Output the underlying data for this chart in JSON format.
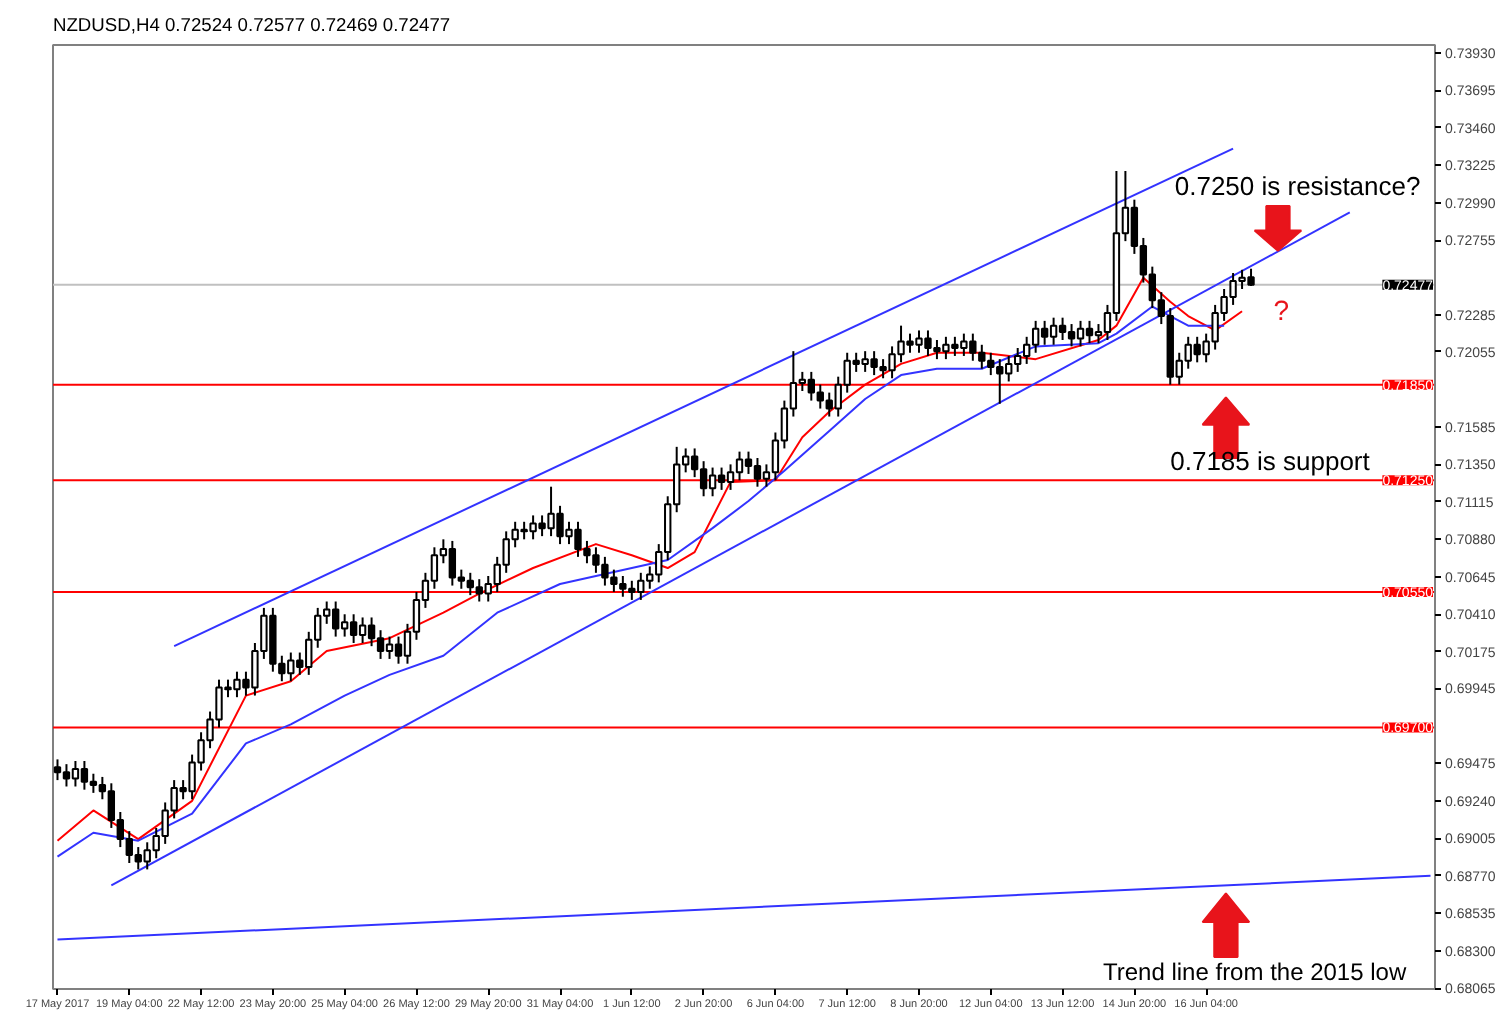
{
  "chart_data": {
    "type": "candlestick",
    "title": "NZDUSD,H4  0.72524 0.72577 0.72469 0.72477",
    "categories": [
      "17 May 2017",
      null,
      null,
      null,
      null,
      null,
      null,
      null,
      "19 May 04:00",
      null,
      null,
      null,
      null,
      null,
      null,
      null,
      "22 May 12:00",
      null,
      null,
      null,
      null,
      null,
      null,
      null,
      "23 May 20:00",
      null,
      null,
      null,
      null,
      null,
      null,
      null,
      "25 May 04:00",
      null,
      null,
      null,
      null,
      null,
      null,
      null,
      "26 May 12:00",
      null,
      null,
      null,
      null,
      null,
      null,
      null,
      "29 May 20:00",
      null,
      null,
      null,
      null,
      null,
      null,
      null,
      "31 May 04:00",
      null,
      null,
      null,
      null,
      null,
      null,
      null,
      "1 Jun 12:00",
      null,
      null,
      null,
      null,
      null,
      null,
      null,
      "2 Jun 20:00",
      null,
      null,
      null,
      null,
      null,
      null,
      null,
      "6 Jun 04:00",
      null,
      null,
      null,
      null,
      null,
      null,
      null,
      "7 Jun 12:00",
      null,
      null,
      null,
      null,
      null,
      null,
      null,
      "8 Jun 20:00",
      null,
      null,
      null,
      null,
      null,
      null,
      null,
      "12 Jun 04:00",
      null,
      null,
      null,
      null,
      null,
      null,
      null,
      "13 Jun 12:00",
      null,
      null,
      null,
      null,
      null,
      null,
      null,
      "14 Jun 20:00",
      null,
      null,
      null,
      null,
      null,
      null,
      null,
      "16 Jun 04:00",
      null,
      null,
      null,
      null,
      null,
      null,
      null,
      null,
      null,
      null,
      null,
      null,
      null,
      null,
      null,
      null,
      null,
      null,
      null,
      null,
      null,
      null,
      null,
      null,
      null
    ],
    "ohlc": [
      [
        0.6945,
        0.695,
        0.6937,
        0.6942
      ],
      [
        0.6942,
        0.6947,
        0.6933,
        0.6938
      ],
      [
        0.6938,
        0.6949,
        0.6933,
        0.6944
      ],
      [
        0.6944,
        0.6949,
        0.6931,
        0.6936
      ],
      [
        0.6936,
        0.6941,
        0.6929,
        0.6934
      ],
      [
        0.6934,
        0.6939,
        0.6925,
        0.693
      ],
      [
        0.693,
        0.6935,
        0.6907,
        0.6912
      ],
      [
        0.6912,
        0.6917,
        0.6895,
        0.69
      ],
      [
        0.69,
        0.6905,
        0.6885,
        0.689
      ],
      [
        0.689,
        0.6895,
        0.6881,
        0.6886
      ],
      [
        0.6886,
        0.6898,
        0.6881,
        0.6893
      ],
      [
        0.6893,
        0.6907,
        0.6888,
        0.6902
      ],
      [
        0.6902,
        0.6923,
        0.6897,
        0.6918
      ],
      [
        0.6918,
        0.6937,
        0.6913,
        0.6932
      ],
      [
        0.6932,
        0.6937,
        0.6925,
        0.693
      ],
      [
        0.693,
        0.6953,
        0.6925,
        0.6948
      ],
      [
        0.6948,
        0.6967,
        0.6943,
        0.6962
      ],
      [
        0.6962,
        0.698,
        0.6957,
        0.6975
      ],
      [
        0.6975,
        0.7,
        0.697,
        0.6995
      ],
      [
        0.6995,
        0.7,
        0.6989,
        0.6994
      ],
      [
        0.6994,
        0.7005,
        0.6989,
        0.7
      ],
      [
        0.7,
        0.7005,
        0.699,
        0.6995
      ],
      [
        0.6995,
        0.7023,
        0.699,
        0.7018
      ],
      [
        0.7018,
        0.7045,
        0.7013,
        0.704
      ],
      [
        0.704,
        0.7045,
        0.7005,
        0.701
      ],
      [
        0.701,
        0.7015,
        0.6999,
        0.7004
      ],
      [
        0.7004,
        0.7017,
        0.6999,
        0.7012
      ],
      [
        0.7012,
        0.7017,
        0.7003,
        0.7008
      ],
      [
        0.7008,
        0.703,
        0.7003,
        0.7025
      ],
      [
        0.7025,
        0.7045,
        0.702,
        0.704
      ],
      [
        0.704,
        0.7049,
        0.7035,
        0.7044
      ],
      [
        0.7044,
        0.7049,
        0.7027,
        0.7032
      ],
      [
        0.7032,
        0.7041,
        0.7027,
        0.7036
      ],
      [
        0.7036,
        0.7041,
        0.7023,
        0.7028
      ],
      [
        0.7028,
        0.7039,
        0.7023,
        0.7034
      ],
      [
        0.7034,
        0.7039,
        0.7021,
        0.7026
      ],
      [
        0.7026,
        0.7031,
        0.7013,
        0.7018
      ],
      [
        0.7018,
        0.7027,
        0.7013,
        0.7022
      ],
      [
        0.7022,
        0.7027,
        0.701,
        0.7015
      ],
      [
        0.7015,
        0.7035,
        0.701,
        0.703
      ],
      [
        0.703,
        0.7055,
        0.7025,
        0.705
      ],
      [
        0.705,
        0.7067,
        0.7045,
        0.7062
      ],
      [
        0.7062,
        0.7083,
        0.7057,
        0.7078
      ],
      [
        0.7078,
        0.7088,
        0.7073,
        0.7082
      ],
      [
        0.7082,
        0.7087,
        0.7059,
        0.7064
      ],
      [
        0.7064,
        0.7069,
        0.7057,
        0.7062
      ],
      [
        0.7062,
        0.7067,
        0.7053,
        0.7058
      ],
      [
        0.7058,
        0.7063,
        0.7049,
        0.7054
      ],
      [
        0.7054,
        0.7065,
        0.7049,
        0.706
      ],
      [
        0.706,
        0.7077,
        0.7055,
        0.7072
      ],
      [
        0.7072,
        0.7093,
        0.7067,
        0.7088
      ],
      [
        0.7088,
        0.7099,
        0.7083,
        0.7094
      ],
      [
        0.7094,
        0.7099,
        0.7088,
        0.7093
      ],
      [
        0.7093,
        0.7103,
        0.7088,
        0.7098
      ],
      [
        0.7098,
        0.7103,
        0.709,
        0.7095
      ],
      [
        0.7095,
        0.7121,
        0.709,
        0.7104
      ],
      [
        0.7104,
        0.7109,
        0.7085,
        0.709
      ],
      [
        0.709,
        0.7099,
        0.7085,
        0.7094
      ],
      [
        0.7094,
        0.7099,
        0.7077,
        0.7082
      ],
      [
        0.7082,
        0.7087,
        0.7073,
        0.7078
      ],
      [
        0.7078,
        0.7083,
        0.7067,
        0.7072
      ],
      [
        0.7072,
        0.7077,
        0.7059,
        0.7064
      ],
      [
        0.7064,
        0.7069,
        0.7055,
        0.706
      ],
      [
        0.706,
        0.7065,
        0.7052,
        0.7057
      ],
      [
        0.7057,
        0.7062,
        0.705,
        0.7055
      ],
      [
        0.7055,
        0.7067,
        0.705,
        0.7062
      ],
      [
        0.7062,
        0.7071,
        0.7057,
        0.7066
      ],
      [
        0.7066,
        0.7085,
        0.7061,
        0.708
      ],
      [
        0.708,
        0.7115,
        0.7075,
        0.711
      ],
      [
        0.711,
        0.7146,
        0.7105,
        0.7135
      ],
      [
        0.7135,
        0.7145,
        0.713,
        0.714
      ],
      [
        0.714,
        0.7145,
        0.7127,
        0.7132
      ],
      [
        0.7132,
        0.7137,
        0.7115,
        0.712
      ],
      [
        0.712,
        0.7133,
        0.7115,
        0.7128
      ],
      [
        0.7128,
        0.7133,
        0.7119,
        0.7124
      ],
      [
        0.7124,
        0.7135,
        0.7119,
        0.713
      ],
      [
        0.713,
        0.7143,
        0.7125,
        0.7138
      ],
      [
        0.7138,
        0.7143,
        0.7129,
        0.7134
      ],
      [
        0.7134,
        0.7139,
        0.7121,
        0.7126
      ],
      [
        0.7126,
        0.7135,
        0.7121,
        0.713
      ],
      [
        0.713,
        0.7155,
        0.7125,
        0.715
      ],
      [
        0.715,
        0.7175,
        0.7145,
        0.717
      ],
      [
        0.717,
        0.7206,
        0.7165,
        0.7186
      ],
      [
        0.7186,
        0.7193,
        0.7181,
        0.7188
      ],
      [
        0.7188,
        0.7193,
        0.7175,
        0.718
      ],
      [
        0.718,
        0.7185,
        0.717,
        0.7175
      ],
      [
        0.7175,
        0.718,
        0.7165,
        0.717
      ],
      [
        0.717,
        0.719,
        0.7165,
        0.7185
      ],
      [
        0.7185,
        0.7205,
        0.718,
        0.72
      ],
      [
        0.72,
        0.7205,
        0.7193,
        0.7198
      ],
      [
        0.7198,
        0.7206,
        0.7193,
        0.7201
      ],
      [
        0.7201,
        0.7206,
        0.7191,
        0.7196
      ],
      [
        0.7196,
        0.7201,
        0.7189,
        0.7194
      ],
      [
        0.7194,
        0.7209,
        0.7189,
        0.7204
      ],
      [
        0.7204,
        0.7222,
        0.7199,
        0.7212
      ],
      [
        0.7212,
        0.7217,
        0.7205,
        0.721
      ],
      [
        0.721,
        0.7219,
        0.7205,
        0.7214
      ],
      [
        0.7214,
        0.7219,
        0.7203,
        0.7208
      ],
      [
        0.7208,
        0.7213,
        0.7201,
        0.7206
      ],
      [
        0.7206,
        0.7215,
        0.7201,
        0.721
      ],
      [
        0.721,
        0.7215,
        0.7203,
        0.7208
      ],
      [
        0.7208,
        0.7217,
        0.7203,
        0.7212
      ],
      [
        0.7212,
        0.7217,
        0.72,
        0.7205
      ],
      [
        0.7205,
        0.721,
        0.7195,
        0.72
      ],
      [
        0.72,
        0.7205,
        0.7191,
        0.7196
      ],
      [
        0.7196,
        0.7201,
        0.7173,
        0.7192
      ],
      [
        0.7192,
        0.7203,
        0.7187,
        0.7198
      ],
      [
        0.7198,
        0.7208,
        0.7193,
        0.7203
      ],
      [
        0.7203,
        0.7215,
        0.7198,
        0.721
      ],
      [
        0.721,
        0.7225,
        0.7205,
        0.722
      ],
      [
        0.722,
        0.7225,
        0.721,
        0.7215
      ],
      [
        0.7215,
        0.7227,
        0.721,
        0.7222
      ],
      [
        0.7222,
        0.7227,
        0.7213,
        0.7218
      ],
      [
        0.7218,
        0.7223,
        0.7209,
        0.7214
      ],
      [
        0.7214,
        0.7225,
        0.7209,
        0.722
      ],
      [
        0.722,
        0.7225,
        0.7211,
        0.7216
      ],
      [
        0.7216,
        0.7223,
        0.7211,
        0.7218
      ],
      [
        0.7218,
        0.7235,
        0.7213,
        0.723
      ],
      [
        0.723,
        0.7319,
        0.7225,
        0.728
      ],
      [
        0.728,
        0.7319,
        0.7275,
        0.7296
      ],
      [
        0.7296,
        0.7301,
        0.7267,
        0.7272
      ],
      [
        0.7272,
        0.7277,
        0.7249,
        0.7254
      ],
      [
        0.7254,
        0.7259,
        0.7233,
        0.7238
      ],
      [
        0.7238,
        0.7243,
        0.7223,
        0.7228
      ],
      [
        0.7228,
        0.7233,
        0.7185,
        0.719
      ],
      [
        0.719,
        0.7205,
        0.7185,
        0.72
      ],
      [
        0.72,
        0.7215,
        0.7195,
        0.721
      ],
      [
        0.721,
        0.7215,
        0.7199,
        0.7204
      ],
      [
        0.7204,
        0.7217,
        0.7199,
        0.7212
      ],
      [
        0.7212,
        0.7235,
        0.7207,
        0.723
      ],
      [
        0.723,
        0.7245,
        0.7225,
        0.724
      ],
      [
        0.724,
        0.7255,
        0.7235,
        0.725
      ],
      [
        0.725,
        0.7257,
        0.7245,
        0.7252
      ],
      [
        0.72524,
        0.72577,
        0.72469,
        0.72477
      ],
      null,
      null,
      null,
      null,
      null,
      null,
      null,
      null,
      null,
      null,
      null,
      null,
      null,
      null,
      null,
      null,
      null,
      null,
      null,
      null
    ],
    "series": [
      {
        "type": "line",
        "color": "#ff0000",
        "values": [
          0.6899,
          null,
          null,
          null,
          0.6918,
          null,
          null,
          null,
          null,
          0.69,
          null,
          null,
          null,
          null,
          null,
          0.6924,
          null,
          null,
          null,
          null,
          null,
          0.699,
          null,
          null,
          null,
          null,
          0.6999,
          null,
          null,
          null,
          0.7018,
          null,
          null,
          null,
          null,
          null,
          null,
          0.7026,
          null,
          null,
          null,
          null,
          null,
          0.7042,
          null,
          null,
          null,
          0.7054,
          null,
          null,
          null,
          null,
          null,
          0.707,
          null,
          null,
          null,
          null,
          null,
          null,
          0.7085,
          null,
          null,
          null,
          0.7078,
          null,
          null,
          null,
          0.707,
          null,
          null,
          0.708,
          null,
          null,
          null,
          0.7124,
          null,
          null,
          null,
          null,
          0.7125,
          null,
          null,
          0.7152,
          null,
          null,
          0.7168,
          null,
          null,
          null,
          0.7185,
          null,
          null,
          null,
          0.7198,
          null,
          null,
          null,
          0.7205,
          null,
          null,
          null,
          null,
          0.7205,
          null,
          null,
          null,
          null,
          null,
          0.7201,
          null,
          null,
          null,
          null,
          null,
          null,
          0.7213,
          null,
          0.7222,
          null,
          null,
          0.7252,
          null,
          null,
          0.7237,
          null,
          0.7228,
          null,
          null,
          0.7219,
          null,
          null,
          0.7231,
          null,
          null,
          null,
          null,
          null,
          null,
          null,
          null,
          null,
          null,
          null,
          null,
          null,
          null,
          null,
          null,
          null,
          null,
          null,
          null,
          null
        ]
      },
      {
        "type": "line",
        "color": "#3333ff",
        "values": [
          0.6889,
          null,
          null,
          null,
          0.6904,
          null,
          null,
          null,
          null,
          0.6899,
          null,
          null,
          null,
          null,
          null,
          0.6916,
          null,
          null,
          null,
          null,
          null,
          0.696,
          null,
          null,
          null,
          null,
          0.6972,
          null,
          null,
          null,
          null,
          null,
          0.699,
          null,
          null,
          null,
          null,
          0.7003,
          null,
          null,
          null,
          null,
          null,
          0.7015,
          null,
          null,
          null,
          null,
          null,
          0.7042,
          null,
          null,
          null,
          null,
          null,
          null,
          0.706,
          null,
          null,
          null,
          null,
          null,
          null,
          null,
          null,
          null,
          null,
          null,
          0.7075,
          null,
          null,
          null,
          null,
          0.7095,
          null,
          null,
          null,
          0.7112,
          null,
          null,
          null,
          0.7131,
          null,
          null,
          null,
          null,
          0.7156,
          null,
          null,
          null,
          0.7176,
          null,
          null,
          null,
          0.7191,
          null,
          null,
          null,
          0.7195,
          null,
          null,
          null,
          null,
          0.7195,
          null,
          null,
          null,
          null,
          null,
          0.7209,
          null,
          null,
          null,
          null,
          null,
          null,
          0.7211,
          null,
          0.7217,
          null,
          null,
          null,
          0.7234,
          null,
          null,
          null,
          0.7222,
          null,
          null,
          null,
          0.7222,
          null,
          null,
          null,
          null,
          null,
          null,
          null,
          null,
          null,
          null,
          null,
          null,
          null,
          null,
          null,
          null,
          null,
          null,
          null,
          null,
          null,
          null,
          null
        ]
      },
      {
        "type": "line",
        "color": "#3333ff",
        "values": [
          null,
          null,
          null,
          null,
          null,
          null,
          null,
          null,
          null,
          null,
          null,
          null,
          null,
          0.7021,
          null,
          null,
          null,
          null,
          null,
          null,
          null,
          null,
          null,
          null,
          null,
          null,
          null,
          null,
          null,
          null,
          null,
          null,
          null,
          null,
          null,
          null,
          null,
          null,
          null,
          null,
          null,
          null,
          null,
          null,
          null,
          null,
          null,
          null,
          null,
          null,
          null,
          null,
          null,
          null,
          null,
          null,
          null,
          null,
          null,
          null,
          null,
          null,
          null,
          null,
          null,
          null,
          null,
          null,
          null,
          null,
          null,
          null,
          null,
          null,
          null,
          null,
          null,
          null,
          null,
          null,
          null,
          null,
          null,
          null,
          null,
          null,
          null,
          null,
          null,
          null,
          null,
          null,
          null,
          null,
          null,
          null,
          null,
          null,
          null,
          null,
          null,
          null,
          null,
          null,
          null,
          null,
          null,
          null,
          null,
          null,
          null,
          null,
          null,
          null,
          null,
          null,
          null,
          null,
          null,
          null,
          null,
          null,
          null,
          null,
          null,
          null,
          null,
          null,
          null,
          null,
          null,
          0.7333,
          null,
          null,
          null,
          null,
          null,
          null,
          null,
          null,
          null,
          null,
          null,
          null,
          null,
          null,
          null,
          null,
          null,
          null,
          null,
          null,
          null,
          null
        ]
      },
      {
        "type": "line",
        "color": "#3333ff",
        "values": [
          null,
          null,
          null,
          null,
          null,
          null,
          0.6871,
          null,
          null,
          null,
          null,
          null,
          null,
          null,
          null,
          null,
          null,
          null,
          null,
          null,
          null,
          null,
          null,
          null,
          null,
          null,
          null,
          null,
          null,
          null,
          null,
          null,
          null,
          null,
          null,
          null,
          null,
          null,
          null,
          null,
          null,
          null,
          null,
          null,
          null,
          null,
          null,
          null,
          null,
          null,
          null,
          null,
          null,
          null,
          null,
          null,
          null,
          null,
          null,
          null,
          null,
          null,
          null,
          null,
          null,
          null,
          null,
          null,
          null,
          null,
          null,
          null,
          null,
          null,
          null,
          null,
          null,
          null,
          null,
          null,
          null,
          null,
          null,
          null,
          null,
          null,
          null,
          null,
          null,
          null,
          null,
          null,
          null,
          null,
          null,
          null,
          null,
          null,
          null,
          null,
          null,
          null,
          null,
          null,
          null,
          null,
          null,
          null,
          null,
          null,
          null,
          null,
          null,
          null,
          null,
          null,
          null,
          null,
          null,
          null,
          null,
          null,
          null,
          null,
          null,
          null,
          null,
          null,
          null,
          null,
          null,
          null,
          null,
          null,
          null,
          null,
          null,
          null,
          null,
          null,
          null,
          null,
          null,
          null,
          0.7293,
          null,
          null,
          null,
          null,
          null,
          null,
          null,
          null,
          null
        ]
      },
      {
        "type": "line",
        "color": "#3333ff",
        "values": [
          0.6837,
          null,
          null,
          null,
          null,
          null,
          null,
          null,
          null,
          null,
          null,
          null,
          null,
          null,
          null,
          null,
          null,
          null,
          null,
          null,
          null,
          null,
          null,
          null,
          null,
          null,
          null,
          null,
          null,
          null,
          null,
          null,
          null,
          null,
          null,
          null,
          null,
          null,
          null,
          null,
          null,
          null,
          null,
          null,
          null,
          null,
          null,
          null,
          null,
          null,
          null,
          null,
          null,
          null,
          null,
          null,
          null,
          null,
          null,
          null,
          null,
          null,
          null,
          null,
          null,
          null,
          null,
          null,
          null,
          null,
          null,
          null,
          null,
          null,
          null,
          null,
          null,
          null,
          null,
          null,
          null,
          null,
          null,
          null,
          null,
          null,
          null,
          null,
          null,
          null,
          null,
          null,
          null,
          null,
          null,
          null,
          null,
          null,
          null,
          null,
          null,
          null,
          null,
          null,
          null,
          null,
          null,
          null,
          null,
          null,
          null,
          null,
          null,
          null,
          null,
          null,
          null,
          null,
          null,
          null,
          null,
          null,
          null,
          null,
          null,
          null,
          null,
          null,
          null,
          null,
          null,
          null,
          null,
          null,
          null,
          null,
          null,
          null,
          null,
          null,
          null,
          null,
          null,
          null,
          null,
          null,
          null,
          null,
          null,
          null,
          null,
          null,
          null,
          0.6877
        ]
      }
    ],
    "ylim": [
      0.6806,
      0.7398
    ],
    "yticks": [
      {
        "value": 0.7393,
        "label": "0.73930"
      },
      {
        "value": 0.73695,
        "label": "0.73695"
      },
      {
        "value": 0.7346,
        "label": "0.73460"
      },
      {
        "value": 0.73225,
        "label": "0.73225"
      },
      {
        "value": 0.7299,
        "label": "0.72990"
      },
      {
        "value": 0.72755,
        "label": "0.72755"
      },
      {
        "value": 0.72285,
        "label": "0.72285"
      },
      {
        "value": 0.72055,
        "label": "0.72055"
      },
      {
        "value": 0.71585,
        "label": "0.71585"
      },
      {
        "value": 0.7135,
        "label": "0.71350"
      },
      {
        "value": 0.71115,
        "label": "0.71115"
      },
      {
        "value": 0.7088,
        "label": "0.70880"
      },
      {
        "value": 0.70645,
        "label": "0.70645"
      },
      {
        "value": 0.7041,
        "label": "0.70410"
      },
      {
        "value": 0.70175,
        "label": "0.70175"
      },
      {
        "value": 0.69945,
        "label": "0.69945"
      },
      {
        "value": 0.69475,
        "label": "0.69475"
      },
      {
        "value": 0.6924,
        "label": "0.69240"
      },
      {
        "value": 0.69005,
        "label": "0.69005"
      },
      {
        "value": 0.6877,
        "label": "0.68770"
      },
      {
        "value": 0.68535,
        "label": "0.68535"
      },
      {
        "value": 0.683,
        "label": "0.68300"
      },
      {
        "value": 0.68065,
        "label": "0.68065"
      }
    ],
    "ref_lines": [
      {
        "axis": "y",
        "value": 0.7185,
        "label": "0.71850",
        "color": "#ff0000"
      },
      {
        "axis": "y",
        "value": 0.7125,
        "label": "0.71250",
        "color": "#ff0000"
      },
      {
        "axis": "y",
        "value": 0.7055,
        "label": "0.70550",
        "color": "#ff0000"
      },
      {
        "axis": "y",
        "value": 0.697,
        "label": "0.69700",
        "color": "#ff0000"
      },
      {
        "axis": "y",
        "value": 0.72477,
        "label": "0.72477",
        "color": "#c0c0c0"
      }
    ],
    "annotations": [
      {
        "text": "0.7250 is resistance?",
        "y": 0.7269
      },
      "?",
      "0.7185 is support",
      {
        "text": "Trend line from the 2015 low",
        "y": 0.6866
      }
    ],
    "grid": false
  }
}
